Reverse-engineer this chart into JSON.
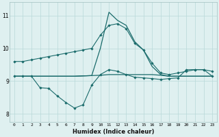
{
  "x": [
    0,
    1,
    2,
    3,
    4,
    5,
    6,
    7,
    8,
    9,
    10,
    11,
    12,
    13,
    14,
    15,
    16,
    17,
    18,
    19,
    20,
    21,
    22,
    23
  ],
  "line1_nodot": [
    9.6,
    9.6,
    9.65,
    9.7,
    9.75,
    9.8,
    9.85,
    9.9,
    9.95,
    10.0,
    10.4,
    10.7,
    10.75,
    10.6,
    10.15,
    9.95,
    9.55,
    9.25,
    9.2,
    9.25,
    9.3,
    9.35,
    9.35,
    9.3
  ],
  "line2_flat": [
    9.15,
    9.15,
    9.15,
    9.15,
    9.15,
    9.15,
    9.15,
    9.15,
    9.16,
    9.17,
    9.18,
    9.2,
    9.2,
    9.2,
    9.2,
    9.2,
    9.2,
    9.18,
    9.15,
    9.15,
    9.15,
    9.15,
    9.15,
    9.15
  ],
  "line3_dip": [
    9.15,
    9.15,
    9.15,
    8.8,
    8.78,
    8.55,
    8.35,
    8.18,
    8.28,
    8.88,
    9.2,
    9.35,
    9.3,
    9.2,
    9.12,
    9.1,
    9.08,
    9.05,
    9.08,
    9.1,
    9.35,
    9.35,
    9.35,
    9.15
  ],
  "line4_peak": [
    9.15,
    9.15,
    9.15,
    9.15,
    9.15,
    9.15,
    9.15,
    9.15,
    9.16,
    9.17,
    10.0,
    11.1,
    10.85,
    10.7,
    10.2,
    9.95,
    9.45,
    9.2,
    9.15,
    9.15,
    9.15,
    9.15,
    9.15,
    9.15
  ],
  "bg_color": "#dff0f0",
  "line_color": "#1a6b6b",
  "grid_color": "#b8d8d8",
  "xlabel": "Humidex (Indice chaleur)",
  "ylim": [
    7.75,
    11.4
  ],
  "xlim": [
    -0.5,
    23.5
  ],
  "yticks": [
    8,
    9,
    10,
    11
  ],
  "xticks": [
    0,
    1,
    2,
    3,
    4,
    5,
    6,
    7,
    8,
    9,
    10,
    11,
    12,
    13,
    14,
    15,
    16,
    17,
    18,
    19,
    20,
    21,
    22,
    23
  ]
}
